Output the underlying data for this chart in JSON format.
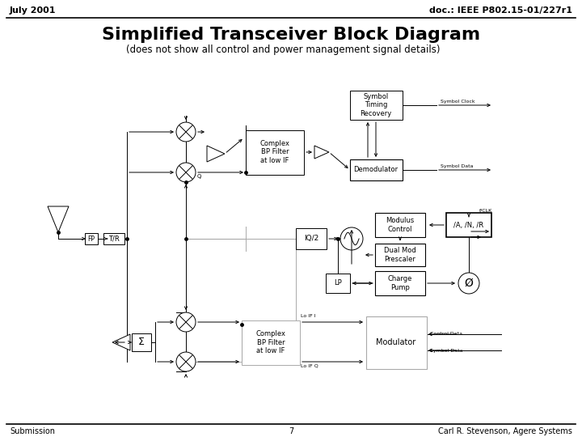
{
  "title": "Simplified Transceiver Block Diagram",
  "subtitle": "(does not show all control and power management signal details)",
  "header_left": "July 2001",
  "header_right": "doc.: IEEE P802.15-01/227r1",
  "footer_left": "Submission",
  "footer_center": "7",
  "footer_right": "Carl R. Stevenson, Agere Systems",
  "bg_color": "#ffffff",
  "line_color": "#000000",
  "gray_color": "#aaaaaa"
}
